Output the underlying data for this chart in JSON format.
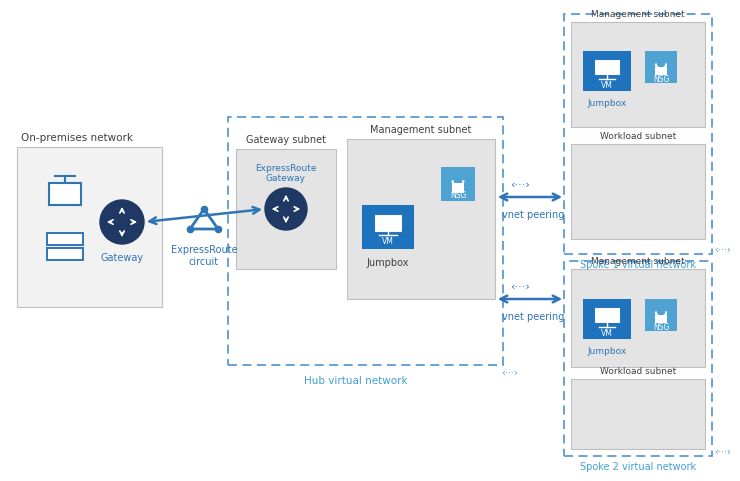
{
  "bg_color": "#ffffff",
  "blue_dark": "#1f3864",
  "blue_mid": "#2e75b6",
  "blue_light": "#4fa3d3",
  "blue_icon": "#1e73be",
  "box_gray": "#f2f2f2",
  "box_border_gray": "#bfbfbf",
  "dashed_blue": "#5b9bd5",
  "text_dark": "#404040",
  "text_blue": "#2e75b6",
  "text_blue_light": "#41a0d5",
  "on_premises_label": "On-premises network",
  "gateway_label": "Gateway",
  "expressroute_label": "ExpressRoute\ncircuit",
  "gateway_subnet_label": "Gateway subnet",
  "management_subnet_hub_label": "Management subnet",
  "expressroute_gw_label": "ExpressRoute\nGateway",
  "hub_vnet_label": "Hub virtual network",
  "jumpbox_label": "Jumpbox",
  "nsg_label": "NSG",
  "vnet_peering_label": "vnet peering",
  "spoke1_label": "Spoke 1 virtual network",
  "spoke2_label": "Spoke 2 virtual network",
  "management_subnet_s1_label": "Management subnet",
  "management_subnet_s2_label": "Management subnet",
  "workload_subnet_s1_label": "Workload subnet",
  "workload_subnet_s2_label": "Workload subnet"
}
